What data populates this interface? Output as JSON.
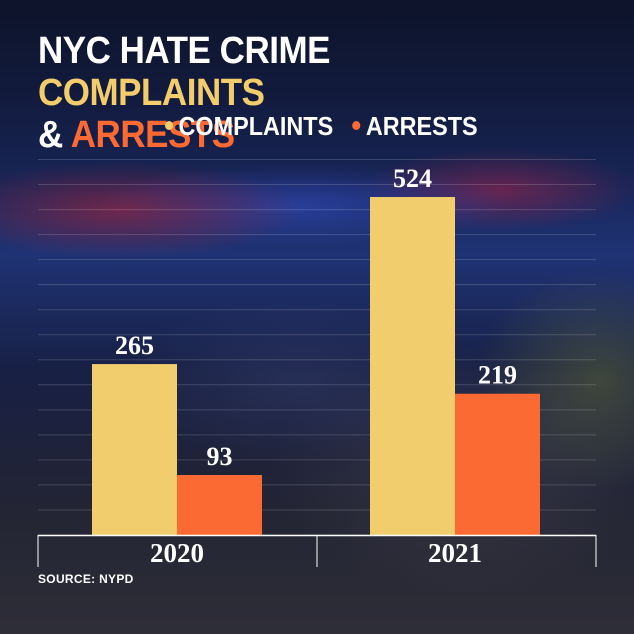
{
  "title": {
    "part1": "NYC HATE CRIME",
    "part2": "COMPLAINTS",
    "part3": "&",
    "part4": "ARRESTS"
  },
  "legend": {
    "complaints": "COMPLAINTS",
    "arrests": "ARRESTS"
  },
  "source": "SOURCE: NYPD",
  "colors": {
    "complaints": "#f2cd6e",
    "arrests": "#fa6a32",
    "title_yellow": "#f3cd6b",
    "title_orange": "#ff6a33",
    "text": "#ffffff"
  },
  "chart_data": {
    "type": "bar",
    "title": "NYC HATE CRIME COMPLAINTS & ARRESTS",
    "categories": [
      "2020",
      "2021"
    ],
    "series": [
      {
        "name": "COMPLAINTS",
        "values": [
          265,
          524
        ]
      },
      {
        "name": "ARRESTS",
        "values": [
          93,
          219
        ]
      }
    ],
    "xlabel": "",
    "ylabel": "",
    "ylim": [
      0,
      600
    ],
    "grid": true,
    "legend": "top",
    "data_labels": true
  }
}
